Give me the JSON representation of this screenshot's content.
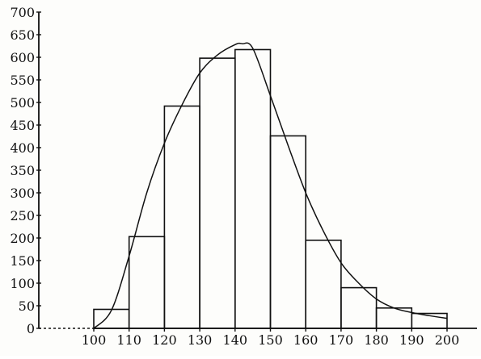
{
  "chart_data": {
    "type": "bar",
    "subtype": "histogram",
    "title": "",
    "xlabel": "",
    "ylabel": "",
    "bins": [
      [
        100,
        110
      ],
      [
        110,
        120
      ],
      [
        120,
        130
      ],
      [
        130,
        140
      ],
      [
        140,
        150
      ],
      [
        150,
        160
      ],
      [
        160,
        170
      ],
      [
        170,
        180
      ],
      [
        180,
        190
      ],
      [
        190,
        200
      ]
    ],
    "values": [
      42,
      203,
      492,
      598,
      617,
      426,
      195,
      90,
      45,
      33
    ],
    "xlim": [
      100,
      200
    ],
    "ylim": [
      0,
      700
    ],
    "x_ticks": [
      100,
      110,
      120,
      130,
      140,
      150,
      160,
      170,
      180,
      190,
      200
    ],
    "x_tick_labels": [
      "100",
      "110",
      "120",
      "130",
      "140",
      "150",
      "160",
      "170",
      "180",
      "190",
      "200"
    ],
    "y_ticks": [
      0,
      50,
      100,
      150,
      200,
      250,
      300,
      350,
      400,
      450,
      500,
      550,
      600,
      650,
      700
    ],
    "y_tick_labels": [
      "0",
      "50",
      "100",
      "150",
      "200",
      "250",
      "300",
      "350",
      "400",
      "450",
      "500",
      "550",
      "600",
      "650",
      "700"
    ],
    "fitted_curve": {
      "x": [
        100,
        105,
        110,
        115,
        120,
        125,
        130,
        135,
        140,
        142,
        145,
        150,
        155,
        160,
        165,
        170,
        175,
        180,
        185,
        190,
        195,
        200
      ],
      "y": [
        0,
        40,
        160,
        300,
        410,
        495,
        565,
        605,
        628,
        630,
        620,
        515,
        405,
        300,
        215,
        145,
        100,
        65,
        45,
        35,
        28,
        22
      ]
    },
    "grid": false,
    "legend": "none",
    "colors": {
      "stroke": "#111111",
      "background": "#fdfdfb"
    }
  }
}
